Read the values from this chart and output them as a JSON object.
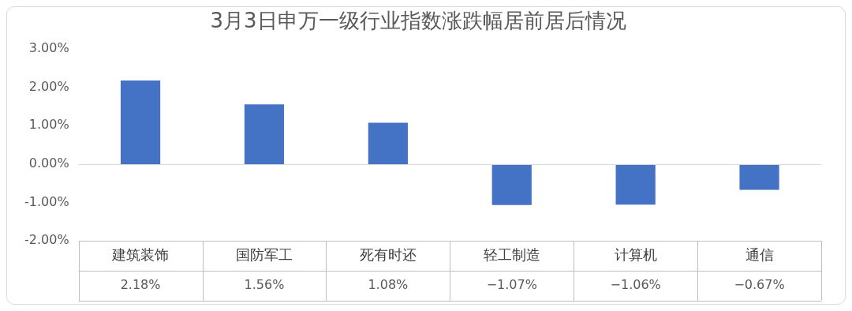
{
  "chart_data": {
    "type": "bar",
    "title": "3月3日申万一级行业指数涨跌幅居前居后情况",
    "categories": [
      "建筑装饰",
      "国防军工",
      "死有时还",
      "轻工制造",
      "计算机",
      "通信"
    ],
    "values": [
      2.18,
      1.56,
      1.08,
      -1.07,
      -1.06,
      -0.67
    ],
    "value_labels": [
      "2.18%",
      "1.56%",
      "1.08%",
      "−1.07%",
      "−1.06%",
      "−0.67%"
    ],
    "color": "#4472c4",
    "ylim": [
      -2,
      3
    ],
    "yticks": [
      {
        "value": -2,
        "label": "-2.00%"
      },
      {
        "value": -1,
        "label": "-1.00%"
      },
      {
        "value": 0,
        "label": "0.00%"
      },
      {
        "value": 1,
        "label": "1.00%"
      },
      {
        "value": 2,
        "label": "2.00%"
      },
      {
        "value": 3,
        "label": "3.00%"
      }
    ],
    "ref_lines": [
      {
        "axis": "y",
        "value": 0,
        "color": "#d9d9d9"
      }
    ],
    "grid": false,
    "legend": false
  }
}
